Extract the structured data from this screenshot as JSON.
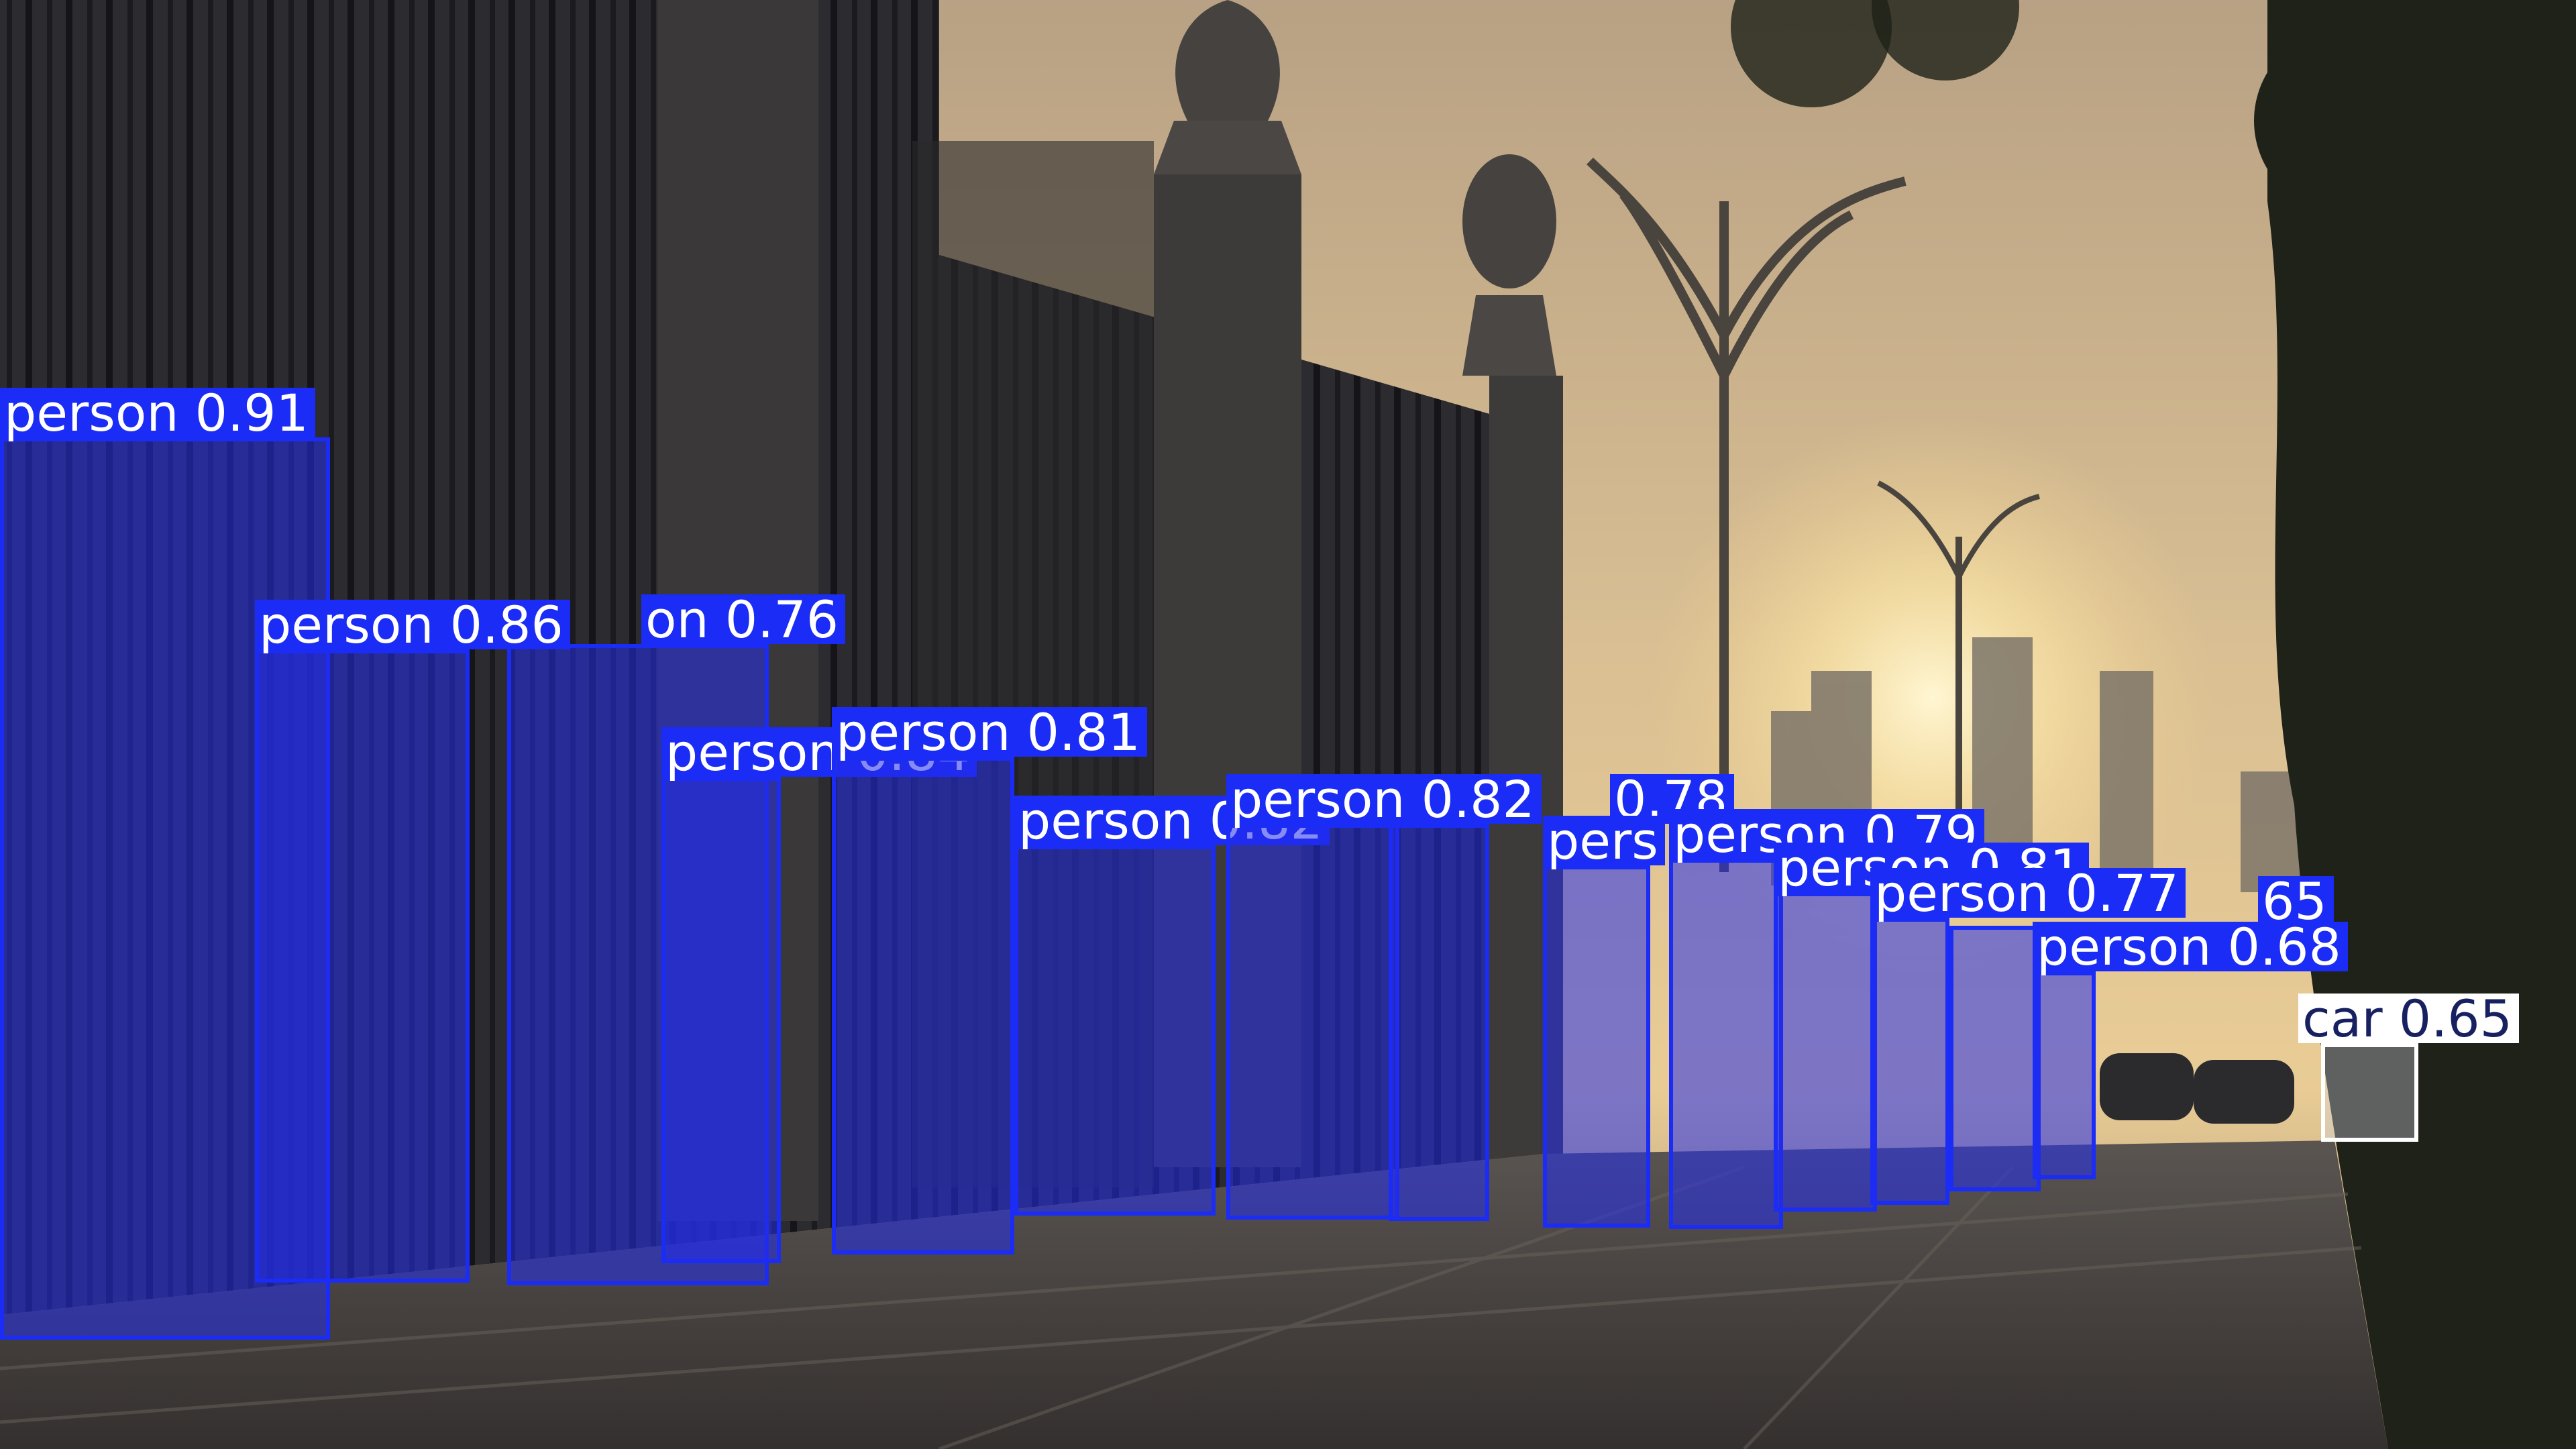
{
  "detections": [
    {
      "label": "person 0.91",
      "class": "person",
      "confidence": 0.91
    },
    {
      "label": "person 0.86",
      "class": "person",
      "confidence": 0.86
    },
    {
      "label": "on 0.76",
      "class": "person",
      "confidence": 0.76
    },
    {
      "label": "person 0.84",
      "class": "person",
      "confidence": 0.84
    },
    {
      "label": "person 0.81",
      "class": "person",
      "confidence": 0.81
    },
    {
      "label": "person 0.82",
      "class": "person",
      "confidence": 0.82
    },
    {
      "label": "person 0.82",
      "class": "person",
      "confidence": 0.82
    },
    {
      "label": "0.78",
      "class": "person",
      "confidence": 0.78
    },
    {
      "label": "pers",
      "class": "person"
    },
    {
      "label": "person 0.79",
      "class": "person",
      "confidence": 0.79
    },
    {
      "label": "person 0.81",
      "class": "person",
      "confidence": 0.81
    },
    {
      "label": "person 0.77",
      "class": "person",
      "confidence": 0.77
    },
    {
      "label": "65",
      "class": "person"
    },
    {
      "label": "person 0.68",
      "class": "person",
      "confidence": 0.68
    },
    {
      "label": "car 0.65",
      "class": "car",
      "confidence": 0.65
    }
  ],
  "colors": {
    "person": "#1a2cf5",
    "car": "#ffffff"
  }
}
